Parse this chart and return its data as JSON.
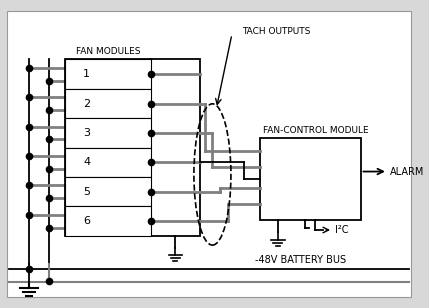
{
  "background_color": "#d8d8d8",
  "inner_bg": "#ffffff",
  "label_fan_modules": "FAN MODULES",
  "label_tach_outputs": "TACH OUTPUTS",
  "label_fan_control": "FAN-CONTROL MODULE",
  "label_alarm": "ALARM",
  "label_i2c": "I²C",
  "label_battery": "-48V BATTERY BUS",
  "fan_numbers": [
    "1",
    "2",
    "3",
    "4",
    "5",
    "6"
  ],
  "lc": "#000000",
  "gc": "#808080",
  "dc": "#000000"
}
